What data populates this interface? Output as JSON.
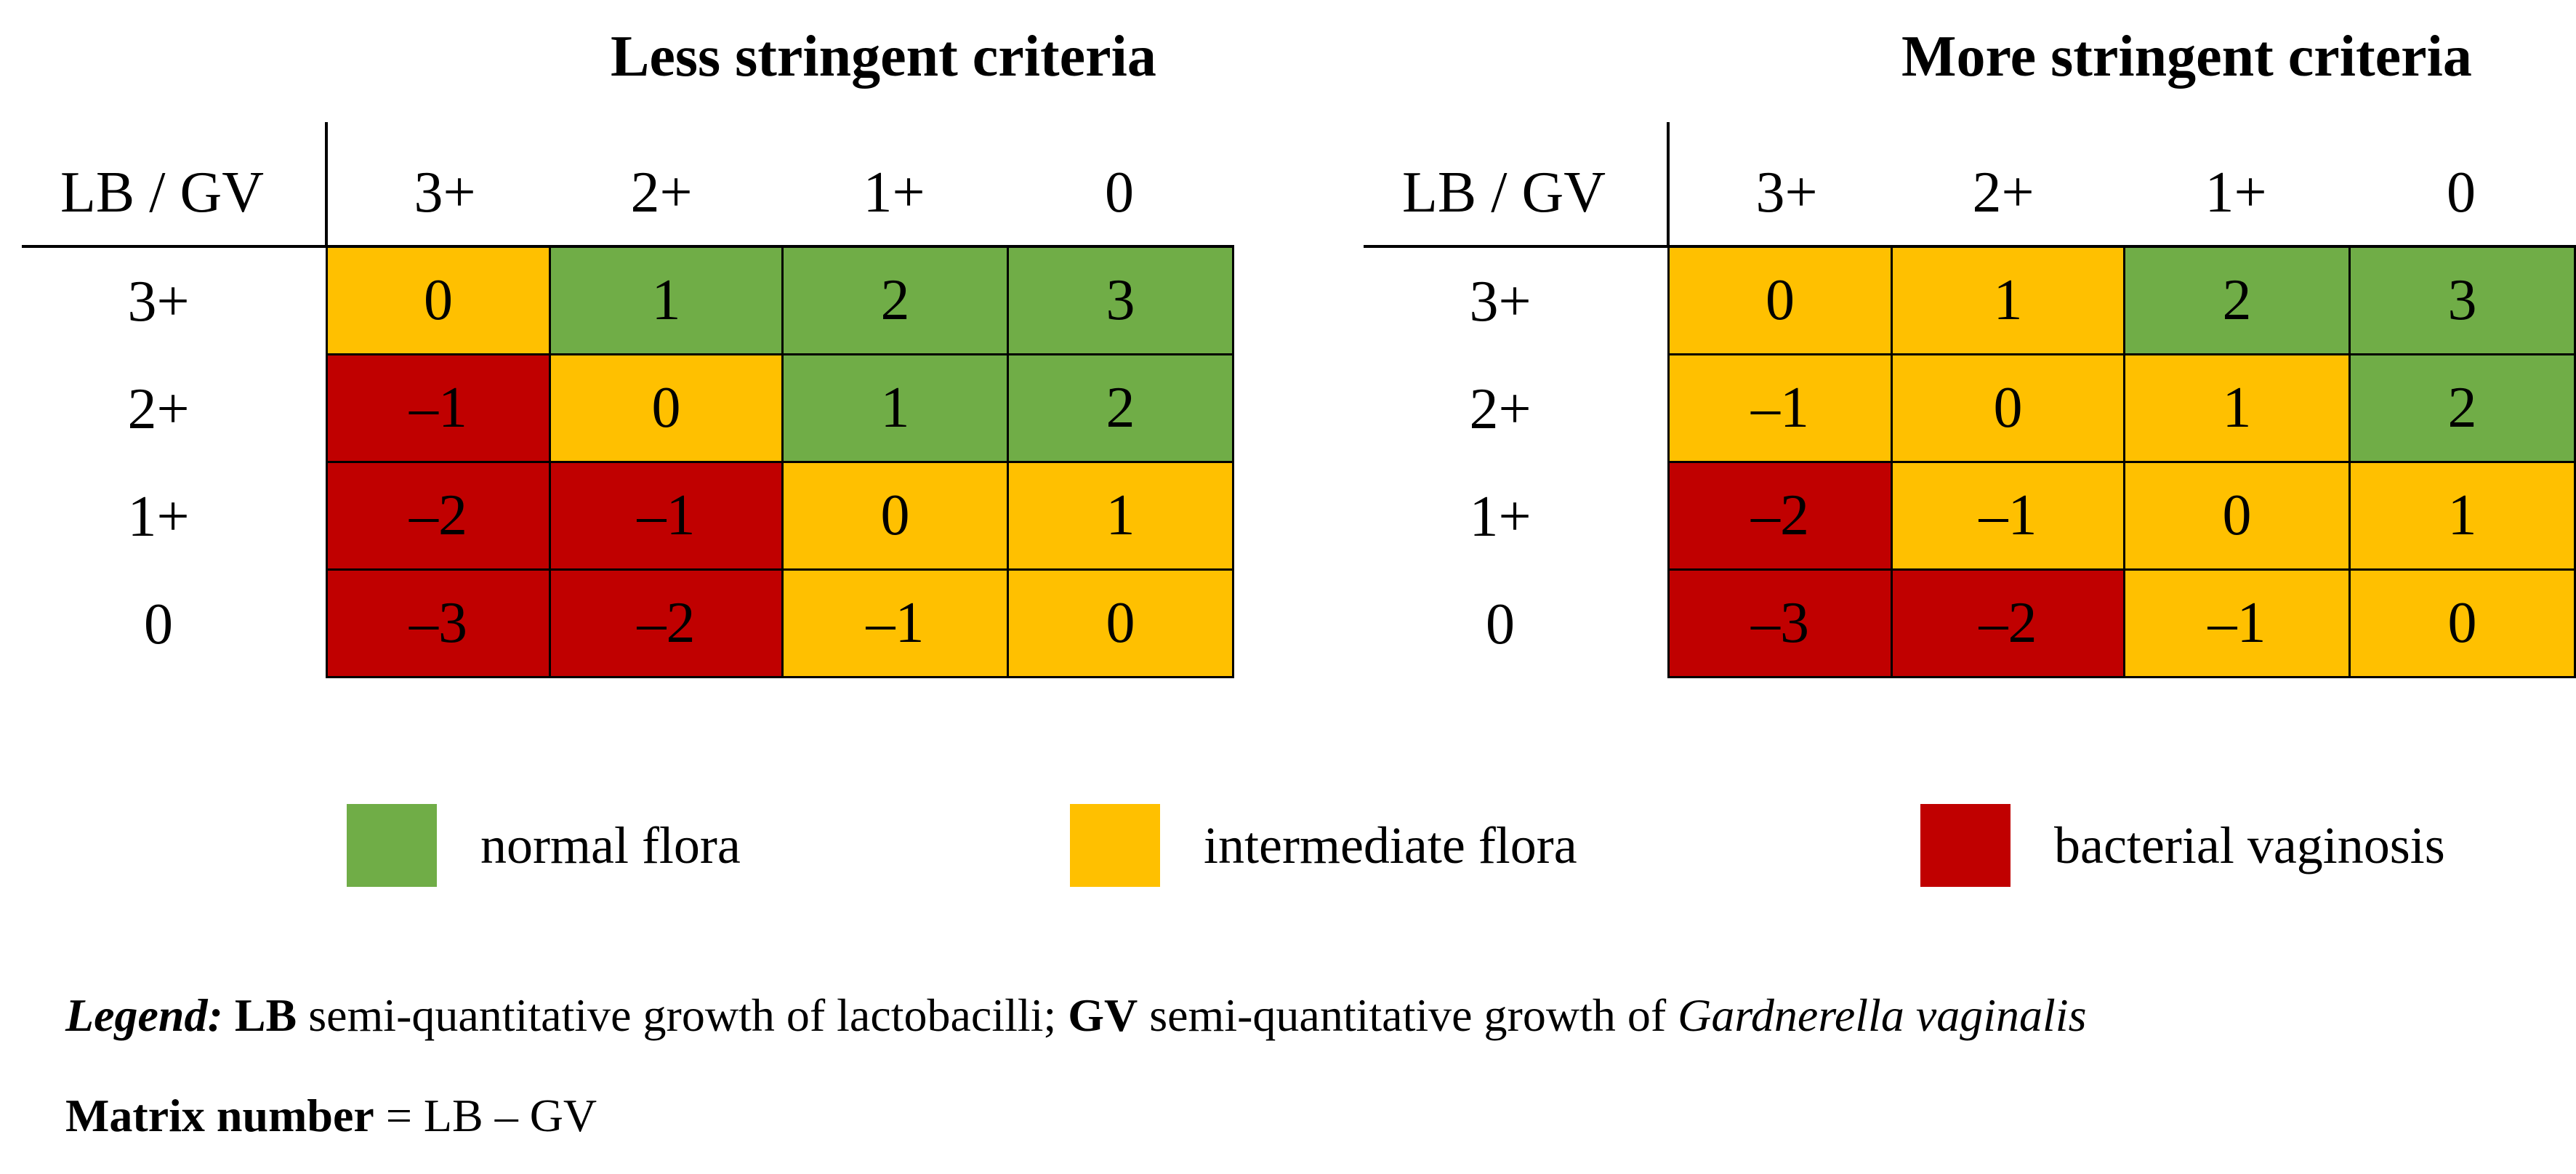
{
  "matrices": [
    {
      "title": "Less stringent criteria",
      "corner_label": "LB / GV",
      "columns": [
        "3+",
        "2+",
        "1+",
        "0"
      ],
      "rows": [
        {
          "label": "3+",
          "cells": [
            {
              "value": "0",
              "class": "intermediate flora"
            },
            {
              "value": "1",
              "class": "normal flora"
            },
            {
              "value": "2",
              "class": "normal flora"
            },
            {
              "value": "3",
              "class": "normal flora"
            }
          ]
        },
        {
          "label": "2+",
          "cells": [
            {
              "value": "–1",
              "class": "bacterial vaginosis"
            },
            {
              "value": "0",
              "class": "intermediate flora"
            },
            {
              "value": "1",
              "class": "normal flora"
            },
            {
              "value": "2",
              "class": "normal flora"
            }
          ]
        },
        {
          "label": "1+",
          "cells": [
            {
              "value": "–2",
              "class": "bacterial vaginosis"
            },
            {
              "value": "–1",
              "class": "bacterial vaginosis"
            },
            {
              "value": "0",
              "class": "intermediate flora"
            },
            {
              "value": "1",
              "class": "intermediate flora"
            }
          ]
        },
        {
          "label": "0",
          "cells": [
            {
              "value": "–3",
              "class": "bacterial vaginosis"
            },
            {
              "value": "–2",
              "class": "bacterial vaginosis"
            },
            {
              "value": "–1",
              "class": "intermediate flora"
            },
            {
              "value": "0",
              "class": "intermediate flora"
            }
          ]
        }
      ]
    },
    {
      "title": "More stringent criteria",
      "corner_label": "LB / GV",
      "columns": [
        "3+",
        "2+",
        "1+",
        "0"
      ],
      "rows": [
        {
          "label": "3+",
          "cells": [
            {
              "value": "0",
              "class": "intermediate flora"
            },
            {
              "value": "1",
              "class": "intermediate flora"
            },
            {
              "value": "2",
              "class": "normal flora"
            },
            {
              "value": "3",
              "class": "normal flora"
            }
          ]
        },
        {
          "label": "2+",
          "cells": [
            {
              "value": "–1",
              "class": "intermediate flora"
            },
            {
              "value": "0",
              "class": "intermediate flora"
            },
            {
              "value": "1",
              "class": "intermediate flora"
            },
            {
              "value": "2",
              "class": "normal flora"
            }
          ]
        },
        {
          "label": "1+",
          "cells": [
            {
              "value": "–2",
              "class": "bacterial vaginosis"
            },
            {
              "value": "–1",
              "class": "intermediate flora"
            },
            {
              "value": "0",
              "class": "intermediate flora"
            },
            {
              "value": "1",
              "class": "intermediate flora"
            }
          ]
        },
        {
          "label": "0",
          "cells": [
            {
              "value": "–3",
              "class": "bacterial vaginosis"
            },
            {
              "value": "–2",
              "class": "bacterial vaginosis"
            },
            {
              "value": "–1",
              "class": "intermediate flora"
            },
            {
              "value": "0",
              "class": "intermediate flora"
            }
          ]
        }
      ]
    }
  ],
  "legend": [
    {
      "label": "normal flora",
      "color": "#70ad47"
    },
    {
      "label": "intermediate flora",
      "color": "#ffc000"
    },
    {
      "label": "bacterial vaginosis",
      "color": "#c00000"
    }
  ],
  "footnotes": {
    "legend_prefix": "Legend:",
    "lb_abbr": "LB",
    "lb_text": " semi-quantitative growth of lactobacilli; ",
    "gv_abbr": "GV",
    "gv_text": " semi-quantitative growth of ",
    "gv_species": "Gardnerella vaginalis",
    "matrix_label": "Matrix number",
    "matrix_formula": " = LB – GV"
  }
}
